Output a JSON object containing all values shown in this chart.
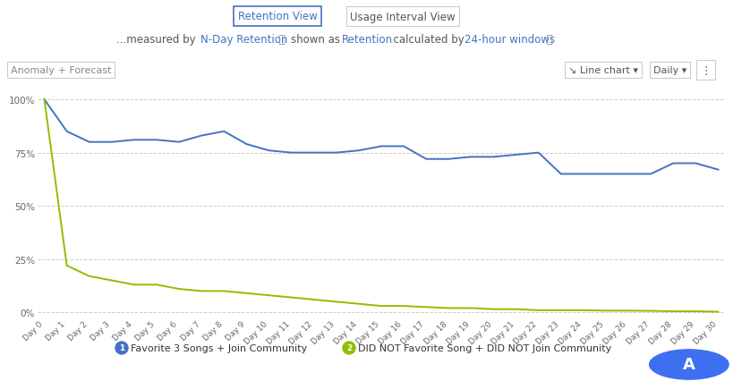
{
  "blue_line": [
    100,
    85,
    80,
    80,
    81,
    81,
    80,
    83,
    85,
    79,
    76,
    75,
    75,
    75,
    76,
    78,
    78,
    72,
    72,
    73,
    73,
    74,
    75,
    65,
    65,
    65,
    65,
    65,
    70,
    70,
    67
  ],
  "green_line": [
    100,
    22,
    17,
    15,
    13,
    13,
    11,
    10,
    10,
    9,
    8,
    7,
    6,
    5,
    4,
    3,
    3,
    2.5,
    2,
    2,
    1.5,
    1.5,
    1,
    1,
    1,
    0.8,
    0.8,
    0.7,
    0.5,
    0.5,
    0.3
  ],
  "x_labels": [
    "Day 0",
    "Day 1",
    "Day 2",
    "Day 3",
    "Day 4",
    "Day 5",
    "Day 6",
    "Day 7",
    "Day 8",
    "Day 9",
    "Day 10",
    "Day 11",
    "Day 12",
    "Day 13",
    "Day 14",
    "Day 15",
    "Day 16",
    "Day 17",
    "Day 18",
    "Day 19",
    "Day 20",
    "Day 21",
    "Day 22",
    "Day 23",
    "Day 24",
    "Day 25",
    "Day 26",
    "Day 27",
    "Day 28",
    "Day 29",
    "Day 30"
  ],
  "blue_color": "#4472c4",
  "green_color": "#8fbe00",
  "background_color": "#ffffff",
  "grid_color": "#cccccc",
  "yticks": [
    0,
    25,
    50,
    75,
    100
  ],
  "ytick_labels": [
    "0%",
    "25%",
    "50%",
    "75%",
    "100%"
  ],
  "legend1": "Favorite 3 Songs + Join Community",
  "legend2": "DID NOT Favorite Song + DID NOT Join Community",
  "legend1_color": "#4472c4",
  "legend2_color": "#8fbe00",
  "button1_text": "Retention View",
  "button2_text": "Usage Interval View",
  "anomaly_text": "Anomaly + Forecast",
  "linechart_text": "Line chart",
  "daily_text": "Daily",
  "logo_color": "#3d6ff0"
}
